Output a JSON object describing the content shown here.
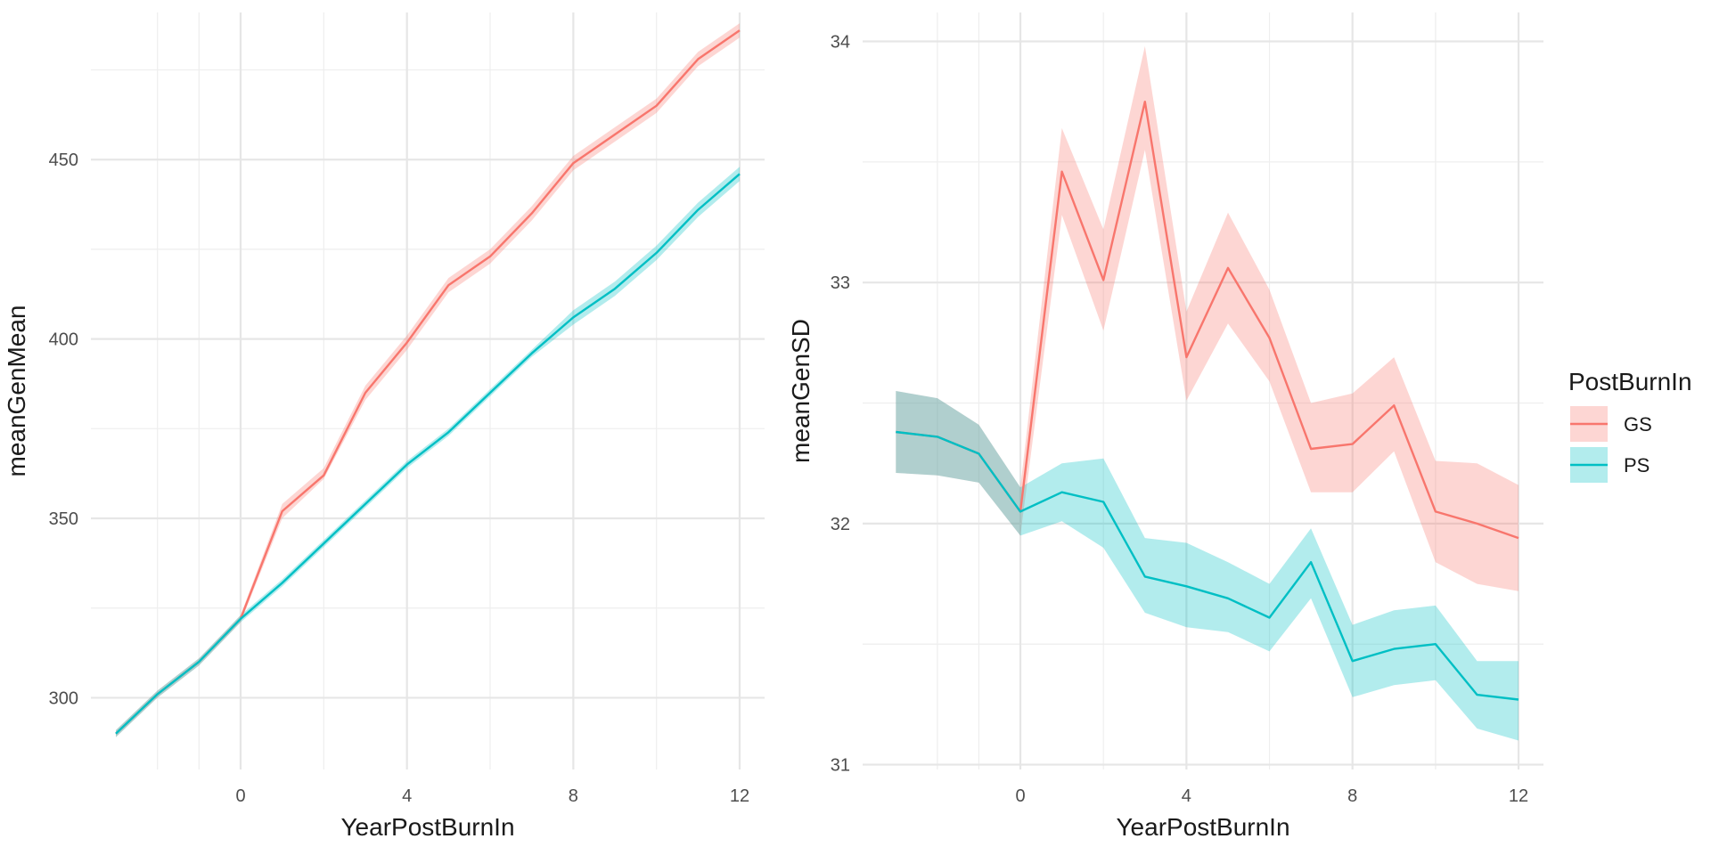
{
  "colors": {
    "GS": "#F8766D",
    "PS": "#00BFC4"
  },
  "legend": {
    "title": "PostBurnIn",
    "items": [
      {
        "key": "GS",
        "label": "GS"
      },
      {
        "key": "PS",
        "label": "PS"
      }
    ]
  },
  "chart_data": [
    {
      "type": "line",
      "xlabel": "YearPostBurnIn",
      "ylabel": "meanGenMean",
      "xlim": [
        -3.6,
        12.6
      ],
      "ylim": [
        280,
        491
      ],
      "xticks": [
        0,
        4,
        8,
        12
      ],
      "xminor": [
        -2,
        -1,
        2,
        6,
        10
      ],
      "yticks": [
        300,
        350,
        400,
        450
      ],
      "yminor": [
        325,
        375,
        425,
        475
      ],
      "grid": true,
      "legend": "none",
      "series": [
        {
          "name": "GS",
          "x": [
            -3,
            -2,
            -1,
            0,
            1,
            2,
            3,
            4,
            5,
            6,
            7,
            8,
            9,
            10,
            11,
            12
          ],
          "y": [
            290,
            301,
            310,
            322,
            352,
            362,
            385,
            399,
            415,
            423,
            435,
            449,
            457,
            465,
            478,
            486
          ],
          "lower": [
            289,
            300,
            309,
            321,
            350,
            361,
            383,
            397,
            413,
            421,
            433,
            447,
            455,
            463,
            476,
            484
          ],
          "upper": [
            291,
            302,
            311,
            323,
            354,
            364,
            387,
            401,
            417,
            425,
            437,
            451,
            459,
            467,
            480,
            488
          ]
        },
        {
          "name": "PS",
          "x": [
            -3,
            -2,
            -1,
            0,
            1,
            2,
            3,
            4,
            5,
            6,
            7,
            8,
            9,
            10,
            11,
            12
          ],
          "y": [
            290,
            301,
            310,
            322,
            332,
            343,
            354,
            365,
            374,
            385,
            396,
            406,
            414,
            424,
            436,
            446
          ],
          "lower": [
            289,
            300,
            309,
            321,
            331,
            342,
            353,
            364,
            373,
            384,
            395,
            404,
            412,
            422,
            434,
            444
          ],
          "upper": [
            291,
            302,
            311,
            323,
            333,
            344,
            355,
            366,
            375,
            386,
            397,
            408,
            416,
            426,
            438,
            448
          ]
        }
      ]
    },
    {
      "type": "line",
      "xlabel": "YearPostBurnIn",
      "ylabel": "meanGenSD",
      "xlim": [
        -3.8,
        12.6
      ],
      "ylim": [
        30.98,
        34.12
      ],
      "xticks": [
        0,
        4,
        8,
        12
      ],
      "xminor": [
        -2,
        -1,
        2,
        6,
        10
      ],
      "yticks": [
        31,
        32,
        33,
        34
      ],
      "yminor": [
        31.5,
        32.5,
        33.5
      ],
      "grid": true,
      "legend": "right",
      "series": [
        {
          "name": "GS",
          "x": [
            -3,
            -2,
            -1,
            0,
            1,
            2,
            3,
            4,
            5,
            6,
            7,
            8,
            9,
            10,
            11,
            12
          ],
          "y": [
            32.38,
            32.36,
            32.29,
            32.05,
            33.46,
            33.01,
            33.75,
            32.69,
            33.06,
            32.77,
            32.31,
            32.33,
            32.49,
            32.05,
            32.0,
            31.94
          ],
          "lower": [
            32.21,
            32.2,
            32.17,
            31.95,
            33.28,
            32.8,
            33.55,
            32.51,
            32.83,
            32.59,
            32.13,
            32.13,
            32.3,
            31.84,
            31.75,
            31.72
          ],
          "upper": [
            32.55,
            32.52,
            32.41,
            32.15,
            33.64,
            33.22,
            33.98,
            32.88,
            33.29,
            32.97,
            32.5,
            32.54,
            32.69,
            32.26,
            32.25,
            32.16
          ]
        },
        {
          "name": "PS",
          "x": [
            -3,
            -2,
            -1,
            0,
            1,
            2,
            3,
            4,
            5,
            6,
            7,
            8,
            9,
            10,
            11,
            12
          ],
          "y": [
            32.38,
            32.36,
            32.29,
            32.05,
            32.13,
            32.09,
            31.78,
            31.74,
            31.69,
            31.61,
            31.84,
            31.43,
            31.48,
            31.5,
            31.29,
            31.27
          ],
          "lower": [
            32.21,
            32.2,
            32.17,
            31.95,
            32.01,
            31.9,
            31.63,
            31.57,
            31.55,
            31.47,
            31.69,
            31.28,
            31.33,
            31.35,
            31.15,
            31.1
          ],
          "upper": [
            32.55,
            32.52,
            32.41,
            32.15,
            32.25,
            32.27,
            31.94,
            31.92,
            31.84,
            31.75,
            31.98,
            31.58,
            31.64,
            31.66,
            31.43,
            31.43
          ]
        }
      ]
    }
  ]
}
